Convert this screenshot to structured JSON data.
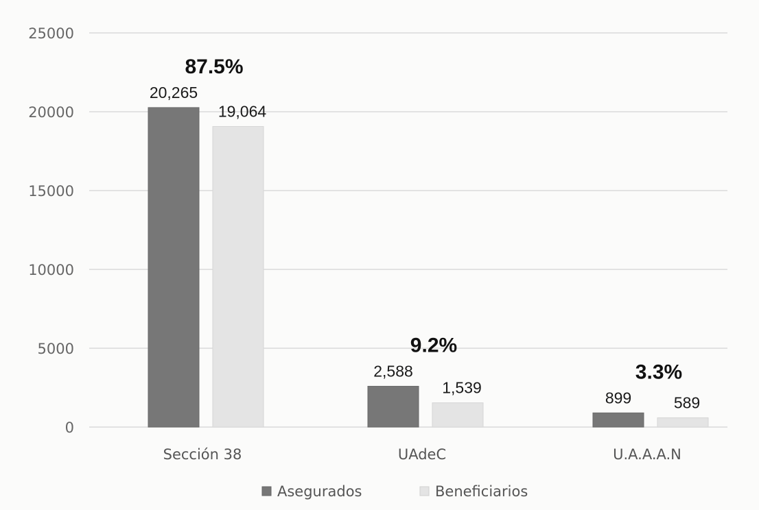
{
  "chart_data": {
    "type": "bar",
    "categories": [
      "Sección 38",
      "UAdeC",
      "U.A.A.A.N"
    ],
    "series": [
      {
        "name": "Asegurados",
        "values": [
          20265,
          2588,
          899
        ],
        "labels": [
          "20,265",
          "2,588",
          "899"
        ],
        "color": "#777777"
      },
      {
        "name": "Beneficiarios",
        "values": [
          19064,
          1539,
          589
        ],
        "labels": [
          "19,064",
          "1,539",
          "589"
        ],
        "color": "#e4e4e4"
      }
    ],
    "group_annotations": [
      "87.5%",
      "9.2%",
      "3.3%"
    ],
    "ylim": [
      0,
      25000
    ],
    "yticks": [
      0,
      5000,
      10000,
      15000,
      20000,
      25000
    ],
    "grid": true,
    "legend_position": "bottom",
    "xlabel": "",
    "ylabel": "",
    "title": ""
  }
}
